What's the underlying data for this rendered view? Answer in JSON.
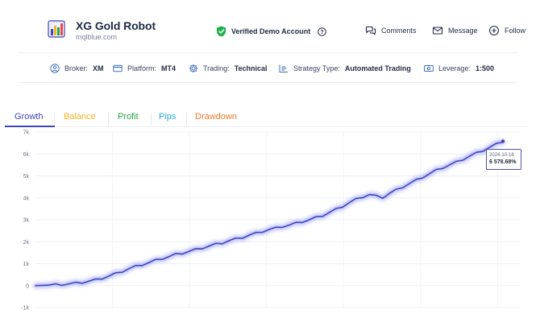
{
  "header": {
    "title": "XG Gold Robot",
    "domain": "mqlblue.com",
    "verified_label": "Verified Demo Account",
    "actions": [
      {
        "label": "Comments",
        "icon": "comments-icon"
      },
      {
        "label": "Message",
        "icon": "mail-icon"
      },
      {
        "label": "Follow",
        "icon": "plus-circle-icon"
      }
    ]
  },
  "info": [
    {
      "label": "Broker:",
      "value": "XM",
      "icon": "user-circle-icon"
    },
    {
      "label": "Platform:",
      "value": "MT4",
      "icon": "card-icon"
    },
    {
      "label": "Trading:",
      "value": "Technical",
      "icon": "gear-icon"
    },
    {
      "label": "Strategy Type:",
      "value": "Automated Trading",
      "icon": "list-icon"
    },
    {
      "label": "Leverage:",
      "value": "1:500",
      "icon": "money-icon"
    }
  ],
  "tabs": [
    {
      "label": "Growth",
      "color": "#3f47b8",
      "active": true
    },
    {
      "label": "Balance",
      "color": "#f0b429"
    },
    {
      "label": "Profit",
      "color": "#27a844"
    },
    {
      "label": "Pips",
      "color": "#2aa7d6"
    },
    {
      "label": "Drawdown",
      "color": "#ef7a2a"
    }
  ],
  "colors": {
    "line": "#3f47b8",
    "glow": "#7b82ff",
    "verified": "#21b04b"
  },
  "tooltip": {
    "date": "2024-10-18",
    "value": "6 578.68%"
  },
  "chart_data": {
    "type": "line",
    "title": "",
    "xlabel": "",
    "ylabel": "",
    "ylim": [
      -1000,
      7000
    ],
    "ytick_labels": [
      "7k",
      "6k",
      "5k",
      "4k",
      "3k",
      "2k",
      "1k",
      "0",
      "-1k"
    ],
    "grid": true,
    "series": [
      {
        "values": [
          0,
          10,
          20,
          35,
          55,
          80,
          110,
          150,
          200,
          260,
          340,
          430,
          540,
          650,
          770,
          870,
          960,
          1050,
          1150,
          1240,
          1320,
          1420,
          1480,
          1560,
          1640,
          1720,
          1800,
          1880,
          1950,
          2050,
          2120,
          2200,
          2300,
          2380,
          2470,
          2560,
          2620,
          2700,
          2760,
          2840,
          2920,
          3000,
          3100,
          3200,
          3330,
          3470,
          3620,
          3780,
          3930,
          4050,
          4150,
          4080,
          4020,
          4200,
          4350,
          4500,
          4650,
          4800,
          4950,
          5100,
          5250,
          5380,
          5500,
          5620,
          5760,
          5900,
          6030,
          6160,
          6300,
          6440,
          6580
        ]
      }
    ]
  }
}
